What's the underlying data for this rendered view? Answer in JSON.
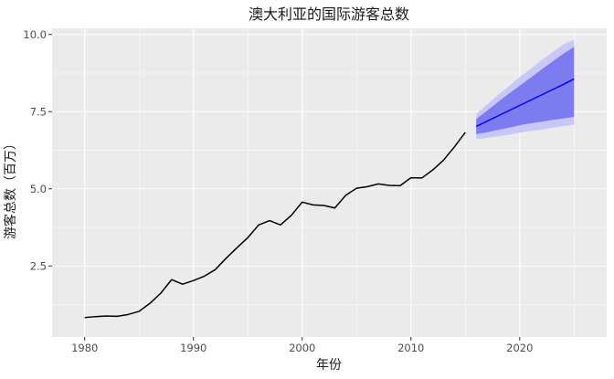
{
  "chart_data": {
    "type": "line",
    "title": "澳大利亚的国际游客总数",
    "xlabel": "年份",
    "ylabel": "游客总数（百万）",
    "xlim": [
      1977,
      2028
    ],
    "ylim": [
      0.2,
      10.2
    ],
    "x_ticks": [
      1980,
      1990,
      2000,
      2010,
      2020
    ],
    "y_ticks": [
      2.5,
      5.0,
      7.5,
      10.0
    ],
    "y_tick_labels": [
      "2.5",
      "5.0",
      "7.5",
      "10.0"
    ],
    "grid": true,
    "legend": "none",
    "colors": {
      "panel": "#ebebeb",
      "grid_major": "#ffffff",
      "history": "#000000",
      "forecast": "#0000ff",
      "band95": "#c8c8f8",
      "band80": "#7c7cf0"
    },
    "series": [
      {
        "x": [
          1980,
          1981,
          1982,
          1983,
          1984,
          1985,
          1986,
          1987,
          1988,
          1989,
          1990,
          1991,
          1992,
          1993,
          1994,
          1995,
          1996,
          1997,
          1998,
          1999,
          2000,
          2001,
          2002,
          2003,
          2004,
          2005,
          2006,
          2007,
          2008,
          2009,
          2010,
          2011,
          2012,
          2013,
          2014,
          2015
        ],
        "values": [
          0.83,
          0.86,
          0.88,
          0.87,
          0.93,
          1.03,
          1.29,
          1.62,
          2.06,
          1.91,
          2.03,
          2.17,
          2.38,
          2.75,
          3.09,
          3.42,
          3.83,
          3.97,
          3.83,
          4.14,
          4.57,
          4.48,
          4.46,
          4.38,
          4.79,
          5.02,
          5.07,
          5.16,
          5.11,
          5.1,
          5.36,
          5.35,
          5.61,
          5.93,
          6.36,
          6.83
        ]
      },
      {
        "x": [
          2016,
          2017,
          2018,
          2019,
          2020,
          2021,
          2022,
          2023,
          2024,
          2025
        ],
        "values": [
          7.02,
          7.19,
          7.36,
          7.53,
          7.7,
          7.87,
          8.04,
          8.21,
          8.38,
          8.56
        ],
        "lo80": [
          6.77,
          6.83,
          6.91,
          6.98,
          7.06,
          7.12,
          7.17,
          7.23,
          7.28,
          7.33
        ],
        "hi80": [
          7.26,
          7.53,
          7.81,
          8.08,
          8.34,
          8.6,
          8.86,
          9.12,
          9.37,
          9.6
        ],
        "lo95": [
          6.61,
          6.65,
          6.7,
          6.75,
          6.82,
          6.87,
          6.92,
          6.98,
          7.03,
          7.08
        ],
        "hi95": [
          7.43,
          7.73,
          8.04,
          8.32,
          8.62,
          8.88,
          9.16,
          9.42,
          9.68,
          9.83
        ]
      }
    ]
  }
}
